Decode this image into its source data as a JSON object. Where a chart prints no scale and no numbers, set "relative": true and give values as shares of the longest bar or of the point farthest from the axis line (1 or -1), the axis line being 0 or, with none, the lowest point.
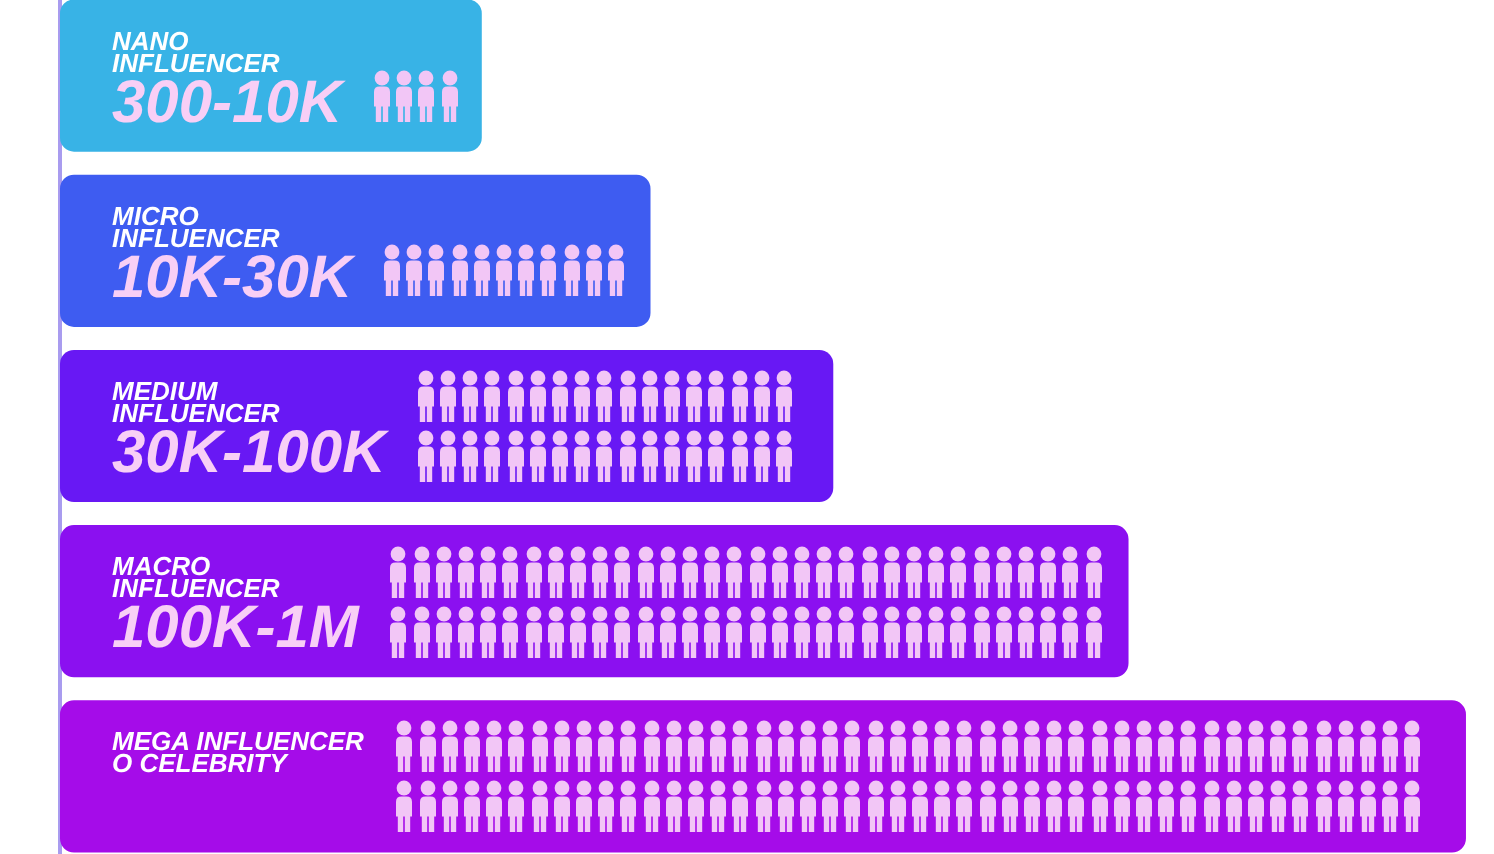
{
  "chart_data": {
    "type": "bar",
    "orientation": "horizontal",
    "relative": true,
    "categories": [
      "NANO\nINFLUENCER\n300-10K",
      "MICRO\nINFLUENCER\n10K-30K",
      "MEDIUM\nINFLUENCER\n30K-100K",
      "MACRO\nINFLUENCER\n100K-1M",
      "MEGA INFLUENCER\nO CELEBRITY"
    ],
    "values": [
      0.3,
      0.42,
      0.55,
      0.76,
      1
    ],
    "colors": [
      "#38b3e6",
      "#3e5cf1",
      "#6818f4",
      "#8b10f0",
      "#a50ce9"
    ]
  }
}
